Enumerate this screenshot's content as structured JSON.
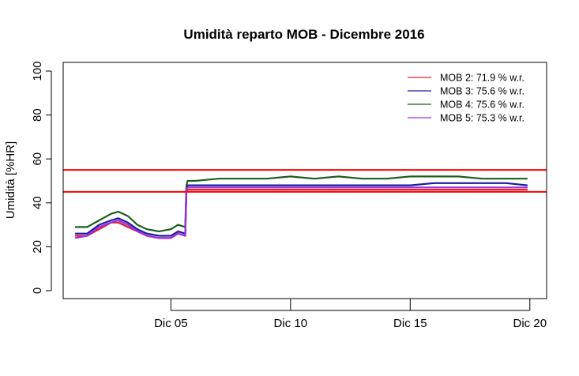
{
  "chart_data": {
    "type": "line",
    "title": "Umidità reparto MOB - Dicembre 2016",
    "xlabel": "",
    "ylabel": "Umidità [%HR]",
    "xlim": [
      0.5,
      20.7
    ],
    "ylim": [
      0,
      100
    ],
    "x_ticks": [
      {
        "day": 5,
        "label": "Dic 05"
      },
      {
        "day": 10,
        "label": "Dic 10"
      },
      {
        "day": 15,
        "label": "Dic 15"
      },
      {
        "day": 20,
        "label": "Dic 20"
      }
    ],
    "y_ticks": [
      {
        "value": 0,
        "label": "0"
      },
      {
        "value": 20,
        "label": "20"
      },
      {
        "value": 40,
        "label": "40"
      },
      {
        "value": 60,
        "label": "60"
      },
      {
        "value": 80,
        "label": "80"
      },
      {
        "value": 100,
        "label": "100"
      }
    ],
    "reference_lines": [
      {
        "y": 45,
        "color": "#ff0000"
      },
      {
        "y": 55,
        "color": "#ff0000"
      }
    ],
    "legend": {
      "position": "top-right",
      "entries": [
        {
          "label": "MOB 2:  71.9 % w.r.",
          "color": "#e0202a"
        },
        {
          "label": "MOB 3:  75.6 % w.r.",
          "color": "#1a1aa0"
        },
        {
          "label": "MOB 4:  75.6 % w.r.",
          "color": "#1a5e1a"
        },
        {
          "label": "MOB 5:  75.3 % w.r.",
          "color": "#9a2ee0"
        }
      ]
    },
    "x": [
      1.0,
      1.5,
      2.0,
      2.5,
      2.8,
      3.2,
      3.6,
      4.0,
      4.5,
      5.0,
      5.3,
      5.6,
      5.65,
      5.7,
      6.0,
      7.0,
      8.0,
      9.0,
      10.0,
      11.0,
      12.0,
      13.0,
      14.0,
      15.0,
      16.0,
      16.5,
      17.0,
      18.0,
      19.0,
      19.9
    ],
    "series": [
      {
        "name": "MOB 2",
        "color": "#e0202a",
        "values": [
          25,
          25,
          28,
          31,
          31,
          29,
          27,
          25,
          24,
          24,
          26,
          25,
          45,
          46,
          46,
          46,
          46,
          46,
          46,
          46,
          46,
          46,
          46,
          46,
          46,
          46,
          46,
          46,
          46,
          46
        ]
      },
      {
        "name": "MOB 3",
        "color": "#1a1aa0",
        "values": [
          26,
          26,
          30,
          32,
          33,
          31,
          28,
          26,
          25,
          25,
          27,
          26,
          46,
          48,
          48,
          48,
          48,
          48,
          48,
          48,
          48,
          48,
          48,
          48,
          49,
          49,
          49,
          49,
          49,
          48
        ]
      },
      {
        "name": "MOB 4",
        "color": "#1a5e1a",
        "values": [
          29,
          29,
          32,
          35,
          36,
          34,
          30,
          28,
          27,
          28,
          30,
          29,
          48,
          50,
          50,
          51,
          51,
          51,
          52,
          51,
          52,
          51,
          51,
          52,
          52,
          52,
          52,
          51,
          51,
          51
        ]
      },
      {
        "name": "MOB 5",
        "color": "#9a2ee0",
        "values": [
          24,
          25,
          29,
          31,
          32,
          30,
          27,
          25,
          24,
          24,
          26,
          25,
          46,
          47,
          47,
          47,
          47,
          47,
          47,
          47,
          47,
          47,
          47,
          47,
          47,
          47,
          47,
          47,
          47,
          47
        ]
      }
    ]
  }
}
